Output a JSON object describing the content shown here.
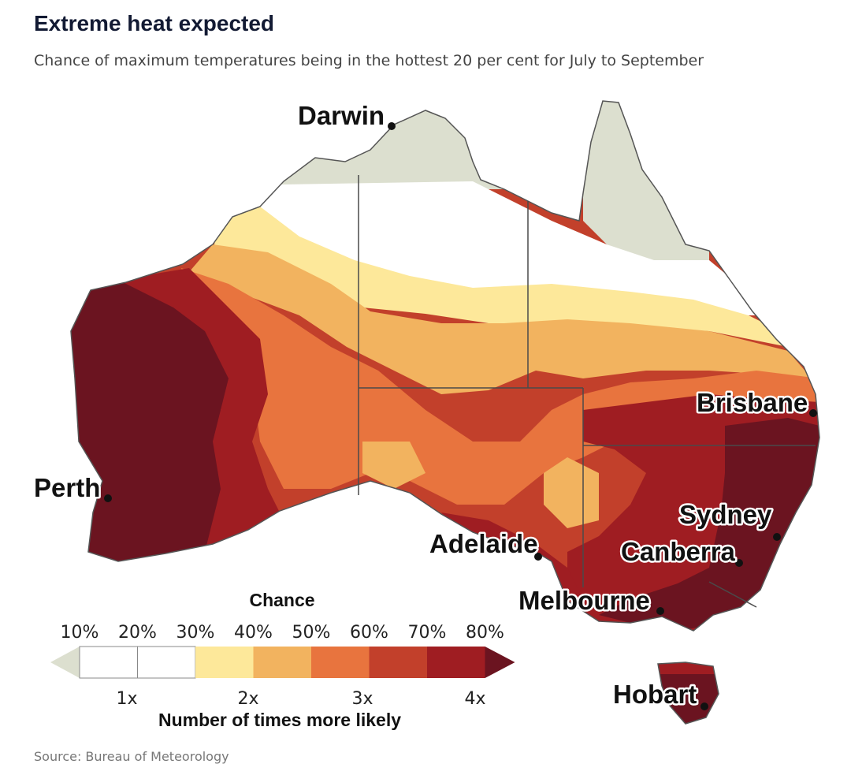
{
  "title": "Extreme heat expected",
  "subtitle": "Chance of maximum temperatures being in the hottest 20 per cent for July to September",
  "cities": {
    "darwin": "Darwin",
    "brisbane": "Brisbane",
    "perth": "Perth",
    "sydney": "Sydney",
    "adelaide": "Adelaide",
    "canberra": "Canberra",
    "melbourne": "Melbourne",
    "hobart": "Hobart"
  },
  "legend": {
    "title": "Chance",
    "percent_ticks": [
      "10%",
      "20%",
      "30%",
      "40%",
      "50%",
      "60%",
      "70%",
      "80%"
    ],
    "multiplier_ticks": [
      "1x",
      "2x",
      "3x",
      "4x"
    ],
    "subtitle": "Number of times more likely",
    "colors": [
      "#dcdfcf",
      "#ffffff",
      "#ffffff",
      "#fde89a",
      "#f2b35f",
      "#e8743e",
      "#c2402b",
      "#9f1d22",
      "#6b1420"
    ]
  },
  "source": "Source: Bureau of Meteorology"
}
